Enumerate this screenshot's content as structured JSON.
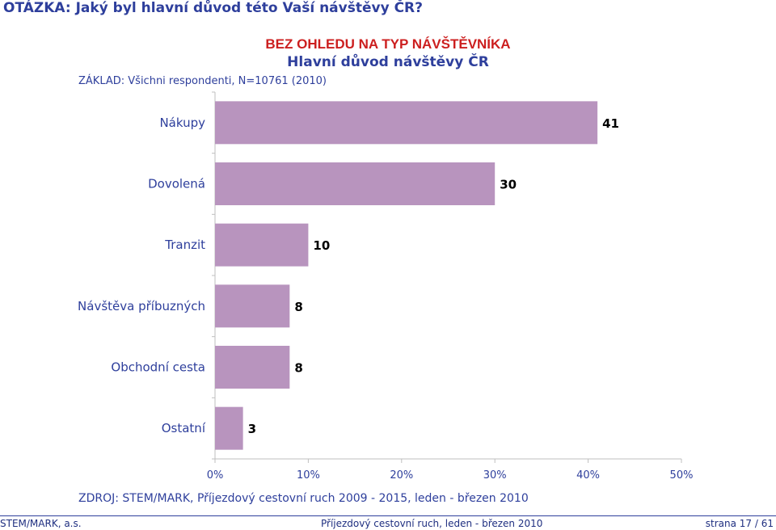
{
  "question": "OTÁZKA: Jaký byl hlavní důvod této Vaší návštěvy ČR?",
  "title_line1": "BEZ OHLEDU NA TYP NÁVŠTĚVNÍKA",
  "title_line2": "Hlavní důvod návštěvy ČR",
  "base_note": "ZÁKLAD: Všichni respondenti, N=10761 (2010)",
  "source_note": "ZDROJ: STEM/MARK, Příjezdový cestovní ruch 2009 - 2015,  leden - březen 2010",
  "footer": {
    "left": "STEM/MARK, a.s.",
    "center": "Příjezdový cestovní ruch, leden - březen 2010",
    "right": "strana 17 / 61"
  },
  "colors": {
    "bar": "#b894be",
    "text": "#2e3f9c",
    "title_red": "#cc1f1f",
    "axis": "#bfbfbf"
  },
  "chart_data": {
    "type": "bar",
    "orientation": "horizontal",
    "categories": [
      "Nákupy",
      "Dovolená",
      "Tranzit",
      "Návštěva příbuzných",
      "Obchodní cesta",
      "Ostatní"
    ],
    "values": [
      41,
      30,
      10,
      8,
      8,
      3
    ],
    "data_labels": [
      "41",
      "30",
      "10",
      "8",
      "8",
      "3"
    ],
    "xlim": [
      0,
      50
    ],
    "x_ticks": [
      0,
      10,
      20,
      30,
      40,
      50
    ],
    "x_tick_labels": [
      "0%",
      "10%",
      "20%",
      "30%",
      "40%",
      "50%"
    ],
    "grid": false
  }
}
